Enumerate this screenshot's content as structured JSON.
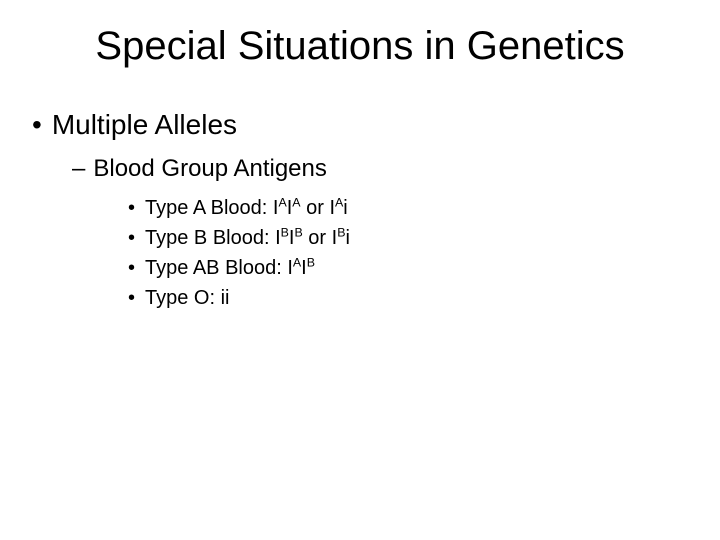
{
  "title": "Special Situations in Genetics",
  "level1": {
    "label": "Multiple Alleles"
  },
  "level2": {
    "label": "Blood Group Antigens"
  },
  "bullets": {
    "a": {
      "prefix": "Type A Blood: I",
      "sup1": "A",
      "mid1": "I",
      "sup2": "A",
      "mid2": " or I",
      "sup3": "A",
      "suffix": "i"
    },
    "b": {
      "prefix": "Type B Blood: I",
      "sup1": "B",
      "mid1": "I",
      "sup2": "B",
      "mid2": " or I",
      "sup3": "B",
      "suffix": "i"
    },
    "ab": {
      "prefix": "Type AB Blood: I",
      "sup1": "A",
      "mid1": "I",
      "sup2": "B",
      "suffix": ""
    },
    "o": {
      "text": "Type O: ii"
    }
  },
  "colors": {
    "background": "#ffffff",
    "text": "#000000"
  },
  "typography": {
    "title_fontsize": 40,
    "level1_fontsize": 28,
    "level2_fontsize": 24,
    "level3_fontsize": 20,
    "font_family": "Arial"
  }
}
